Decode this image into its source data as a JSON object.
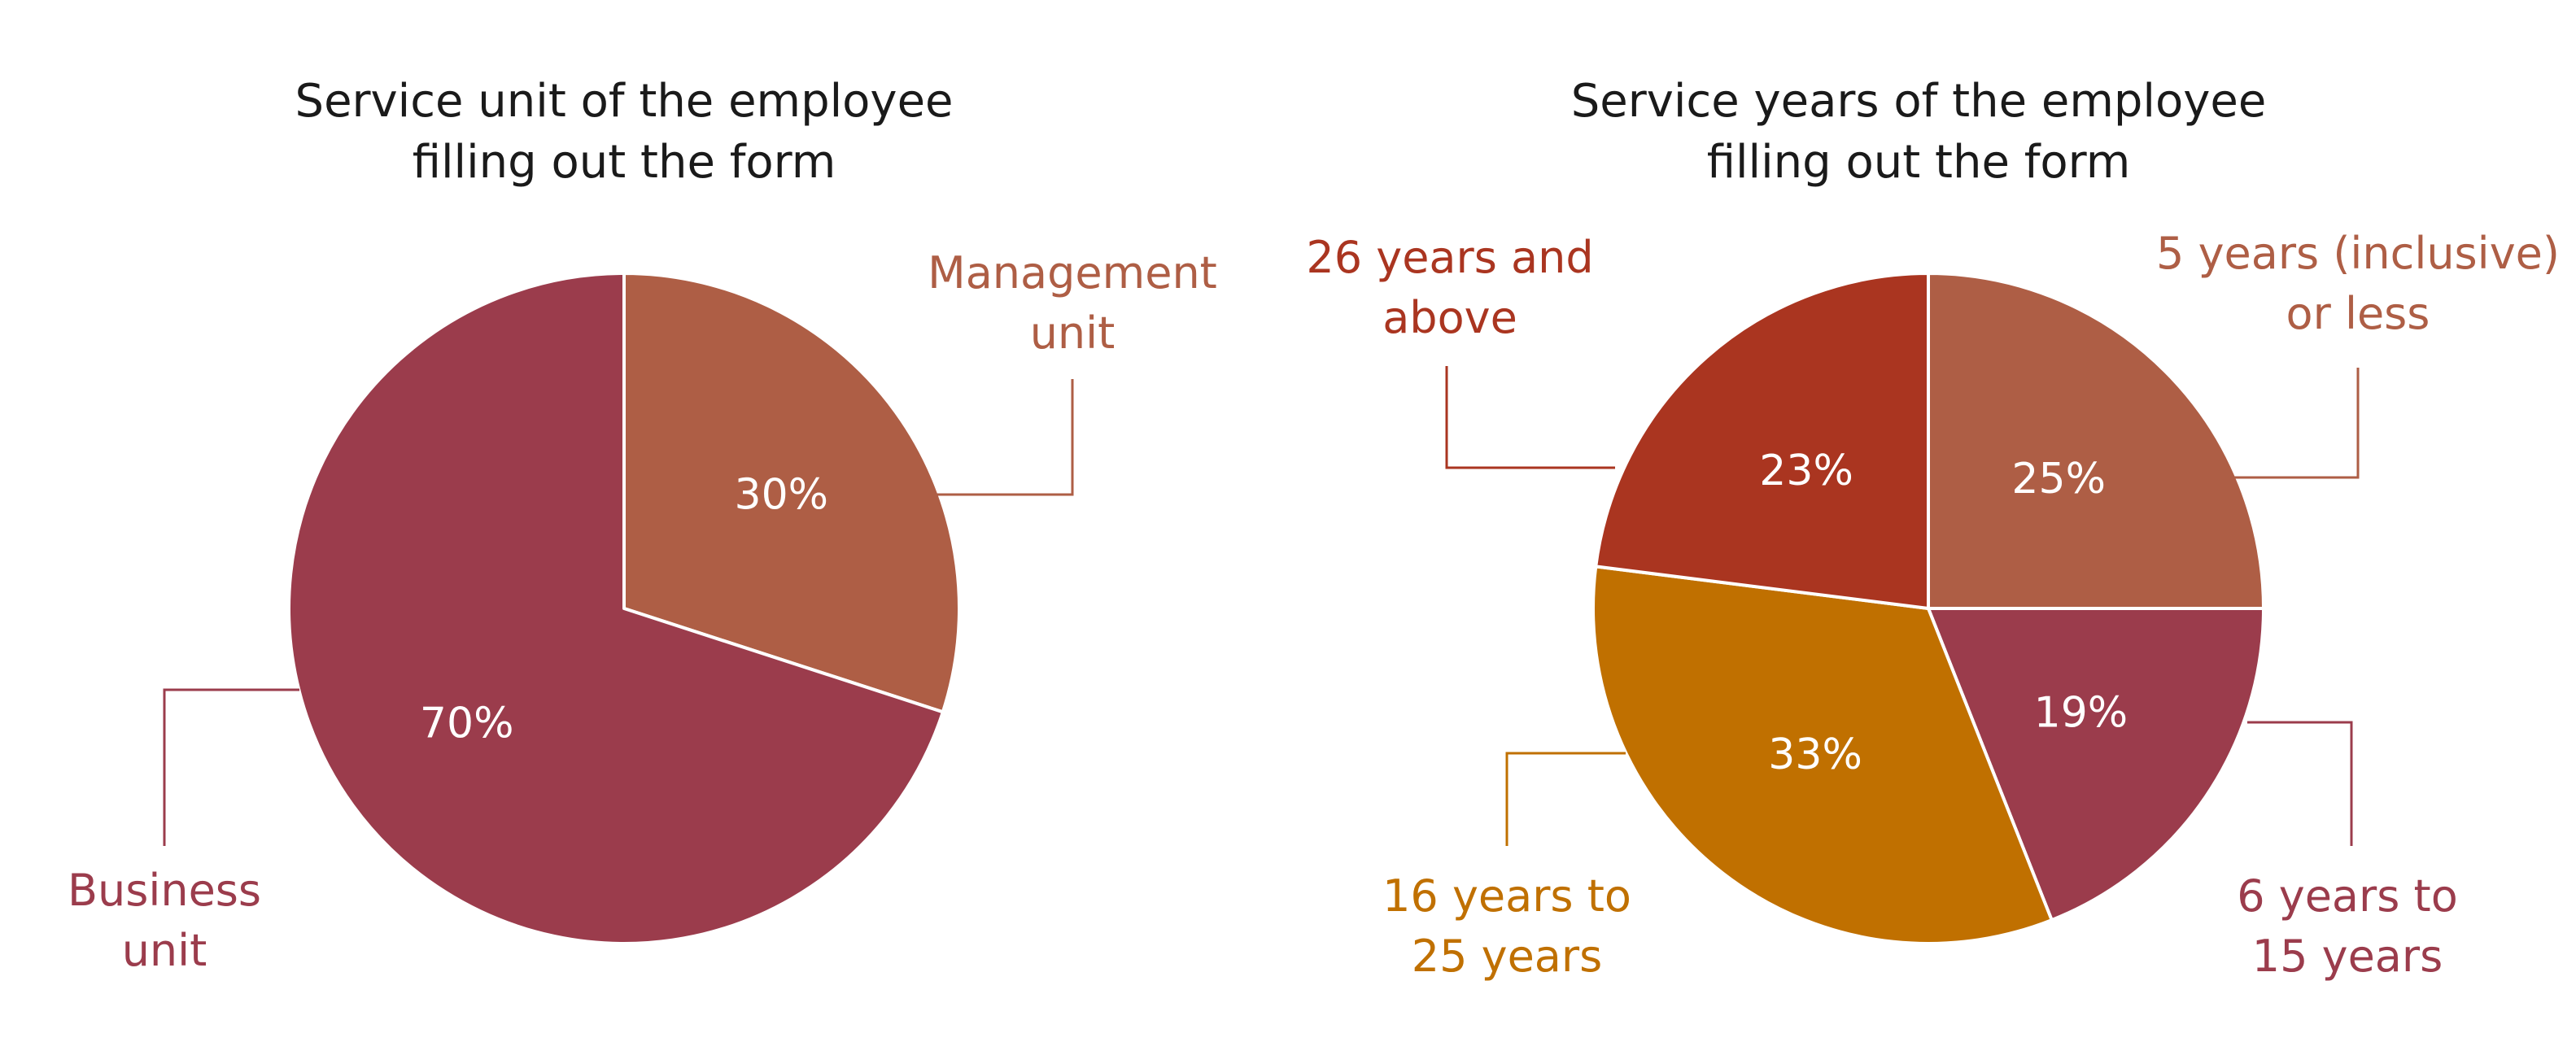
{
  "chart_data": [
    {
      "type": "pie",
      "title": "Service unit of the employee filling out the form",
      "title_lines": [
        "Service unit of the employee",
        "filling out the form"
      ],
      "start": "12 o'clock",
      "direction": "clockwise",
      "slices": [
        {
          "label": "Management unit",
          "label_lines": [
            "Management",
            "unit"
          ],
          "value": 30,
          "value_label": "30%",
          "color": "#AE5E45"
        },
        {
          "label": "Business unit",
          "label_lines": [
            "Business",
            "unit"
          ],
          "value": 70,
          "value_label": "70%",
          "color": "#9B3C4C"
        }
      ]
    },
    {
      "type": "pie",
      "title": "Service years of the employee filling out the form",
      "title_lines": [
        "Service years of the employee",
        "filling out the form"
      ],
      "start": "12 o'clock",
      "direction": "clockwise",
      "slices": [
        {
          "label": "5 years (inclusive) or less",
          "label_lines": [
            "5 years (inclusive)",
            "or less"
          ],
          "value": 25,
          "value_label": "25%",
          "color": "#AE5E45"
        },
        {
          "label": "6 years to 15 years",
          "label_lines": [
            "6 years to",
            "15 years"
          ],
          "value": 19,
          "value_label": "19%",
          "color": "#9B3C4C"
        },
        {
          "label": "16 years to 25 years",
          "label_lines": [
            "16 years to",
            "25 years"
          ],
          "value": 33,
          "value_label": "33%",
          "color": "#C07000"
        },
        {
          "label": "26 years and above",
          "label_lines": [
            "26 years and",
            "above"
          ],
          "value": 23,
          "value_label": "23%",
          "color": "#AA3520"
        }
      ]
    }
  ]
}
